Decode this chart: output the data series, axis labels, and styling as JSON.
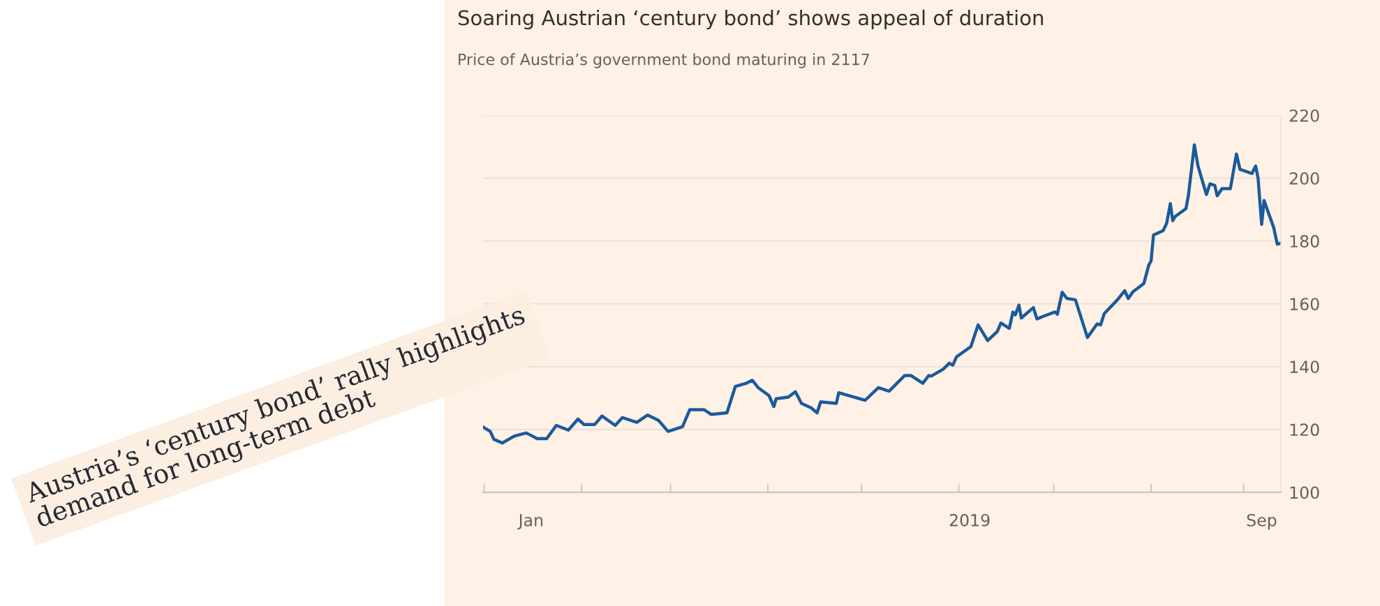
{
  "chart_data": {
    "type": "line",
    "title": "Soaring Austrian ‘century bond’ shows appeal of duration",
    "subtitle": "Price of Austria’s government bond maturing in 2117",
    "annotations": [
      "Austria’s ‘century bond’ rally highlights\ndemand for long-term debt"
    ],
    "x": [
      "2017-11-22",
      "2017-11-28",
      "2017-12-01",
      "2017-12-08",
      "2017-12-18",
      "2017-12-28",
      "2018-01-06",
      "2018-01-14",
      "2018-01-22",
      "2018-02-01",
      "2018-02-09",
      "2018-02-14",
      "2018-02-23",
      "2018-03-01",
      "2018-03-12",
      "2018-03-18",
      "2018-03-30",
      "2018-04-08",
      "2018-04-17",
      "2018-04-25",
      "2018-05-07",
      "2018-05-13",
      "2018-05-25",
      "2018-05-31",
      "2018-06-13",
      "2018-06-20",
      "2018-06-29",
      "2018-07-04",
      "2018-07-09",
      "2018-07-18",
      "2018-07-22",
      "2018-07-24",
      "2018-08-03",
      "2018-08-09",
      "2018-08-14",
      "2018-08-22",
      "2018-08-27",
      "2018-08-30",
      "2018-09-12",
      "2018-09-14",
      "2018-09-22",
      "2018-10-06",
      "2018-10-17",
      "2018-10-26",
      "2018-11-08",
      "2018-11-13",
      "2018-11-23",
      "2018-11-28",
      "2018-11-30",
      "2018-12-10",
      "2018-12-15",
      "2018-12-18",
      "2018-12-21",
      "2019-01-02",
      "2019-01-08",
      "2019-01-16",
      "2019-01-24",
      "2019-01-27",
      "2019-02-03",
      "2019-02-06",
      "2019-02-08",
      "2019-02-11",
      "2019-02-13",
      "2019-02-23",
      "2019-02-26",
      "2019-03-03",
      "2019-03-13",
      "2019-03-15",
      "2019-03-19",
      "2019-03-23",
      "2019-03-30",
      "2019-04-09",
      "2019-04-17",
      "2019-04-20",
      "2019-04-23",
      "2019-05-04",
      "2019-05-10",
      "2019-05-13",
      "2019-05-17",
      "2019-05-26",
      "2019-05-30",
      "2019-06-01",
      "2019-06-03",
      "2019-06-11",
      "2019-06-14",
      "2019-06-17",
      "2019-06-19",
      "2019-06-21",
      "2019-06-30",
      "2019-07-02",
      "2019-07-07",
      "2019-07-10",
      "2019-07-17",
      "2019-07-20",
      "2019-07-24",
      "2019-07-26",
      "2019-07-30",
      "2019-08-06",
      "2019-08-11",
      "2019-08-14",
      "2019-08-24",
      "2019-08-27",
      "2019-08-29",
      "2019-09-01",
      "2019-09-03",
      "2019-09-11",
      "2019-09-14",
      "2019-09-17"
    ],
    "series": [
      {
        "color": "#1b5a9b",
        "values": [
          120.8,
          119.4,
          116.9,
          115.7,
          117.9,
          118.9,
          117.1,
          117.1,
          121.3,
          119.8,
          123.3,
          121.6,
          121.6,
          124.3,
          121.3,
          123.8,
          122.3,
          124.6,
          122.9,
          119.4,
          120.9,
          126.3,
          126.3,
          124.8,
          125.3,
          133.7,
          134.7,
          135.7,
          133.3,
          130.8,
          127.3,
          129.8,
          130.3,
          132.0,
          128.3,
          126.9,
          125.3,
          128.8,
          128.3,
          131.7,
          130.8,
          129.3,
          133.3,
          132.2,
          137.2,
          137.2,
          134.7,
          137.2,
          137.0,
          139.2,
          141.1,
          140.5,
          143.1,
          146.4,
          153.3,
          148.3,
          151.2,
          153.9,
          152.2,
          157.4,
          156.5,
          159.6,
          155.5,
          158.8,
          155.2,
          156.0,
          157.4,
          156.7,
          163.7,
          161.7,
          161.3,
          149.3,
          153.6,
          153.3,
          156.9,
          161.3,
          164.2,
          161.7,
          163.9,
          166.5,
          172.3,
          173.7,
          181.9,
          183.3,
          185.7,
          191.9,
          186.5,
          187.8,
          190.3,
          194.4,
          210.6,
          203.9,
          194.8,
          198.2,
          197.7,
          194.4,
          196.7,
          196.7,
          207.7,
          202.8,
          201.5,
          203.9,
          200.1,
          185.3,
          192.9,
          184.3,
          179.0,
          179.3
        ]
      }
    ],
    "xlim": [
      "2017-11-22",
      "2019-09-17"
    ],
    "xticks": [
      {
        "value": "2018-01-01",
        "label": "Jan"
      },
      {
        "value": "2019-01-01",
        "label": "2019"
      },
      {
        "value": "2019-09-01",
        "label": "Sep"
      },
      {
        "value": "2017-11-23",
        "label": null
      },
      {
        "value": "2018-02-12",
        "label": null
      },
      {
        "value": "2018-04-27",
        "label": null
      },
      {
        "value": "2018-07-17",
        "label": null
      },
      {
        "value": "2018-10-03",
        "label": null
      },
      {
        "value": "2018-12-23",
        "label": null
      },
      {
        "value": "2019-03-12",
        "label": null
      },
      {
        "value": "2019-06-01",
        "label": null
      },
      {
        "value": "2019-08-17",
        "label": null
      }
    ],
    "ylim": [
      100,
      220
    ],
    "yticks": [
      100,
      120,
      140,
      160,
      180,
      200,
      220
    ],
    "grid": "y",
    "legend": false,
    "marker": "none",
    "line_style": "solid"
  }
}
